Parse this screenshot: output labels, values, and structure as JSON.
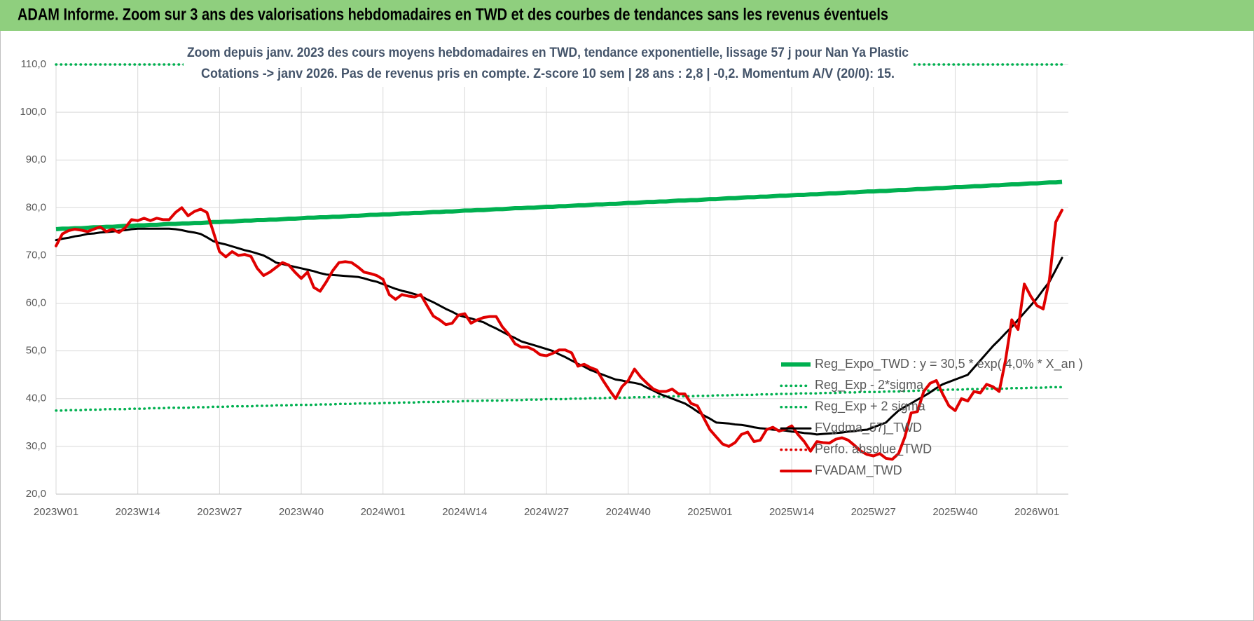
{
  "header": {
    "title": "ADAM Informe. Zoom sur 3 ans des valorisations hebdomadaires en TWD et des courbes de tendances sans les revenus éventuels"
  },
  "chart_data": {
    "type": "line",
    "title": "Zoom depuis janv. 2023 des cours moyens hebdomadaires en TWD, tendance exponentielle, lissage 57 j pour Nan Ya Plastic",
    "subtitle": "Cotations -> janv 2026. Pas de revenus pris en compte. Z-score 10 sem | 28 ans : 2,8 | -0,2. Momentum A/V (20/0): 15.",
    "categories": [
      "2023W01",
      null,
      null,
      null,
      null,
      null,
      null,
      null,
      null,
      null,
      null,
      null,
      null,
      "2023W14",
      null,
      null,
      null,
      null,
      null,
      null,
      null,
      null,
      null,
      null,
      null,
      null,
      "2023W27",
      null,
      null,
      null,
      null,
      null,
      null,
      null,
      null,
      null,
      null,
      null,
      null,
      "2023W40",
      null,
      null,
      null,
      null,
      null,
      null,
      null,
      null,
      null,
      null,
      null,
      null,
      "2024W01",
      null,
      null,
      null,
      null,
      null,
      null,
      null,
      null,
      null,
      null,
      null,
      null,
      "2024W14",
      null,
      null,
      null,
      null,
      null,
      null,
      null,
      null,
      null,
      null,
      null,
      null,
      "2024W27",
      null,
      null,
      null,
      null,
      null,
      null,
      null,
      null,
      null,
      null,
      null,
      null,
      "2024W40",
      null,
      null,
      null,
      null,
      null,
      null,
      null,
      null,
      null,
      null,
      null,
      null,
      "2025W01",
      null,
      null,
      null,
      null,
      null,
      null,
      null,
      null,
      null,
      null,
      null,
      null,
      "2025W14",
      null,
      null,
      null,
      null,
      null,
      null,
      null,
      null,
      null,
      null,
      null,
      null,
      "2025W27",
      null,
      null,
      null,
      null,
      null,
      null,
      null,
      null,
      null,
      null,
      null,
      null,
      "2025W40",
      null,
      null,
      null,
      null,
      null,
      null,
      null,
      null,
      null,
      null,
      null,
      null,
      "2026W01",
      null,
      null,
      null,
      null
    ],
    "ylim": [
      20,
      110
    ],
    "yticks": [
      {
        "value": 20,
        "label": "20,0"
      },
      {
        "value": 30,
        "label": "30,0"
      },
      {
        "value": 40,
        "label": "40,0"
      },
      {
        "value": 50,
        "label": "50,0"
      },
      {
        "value": 60,
        "label": "60,0"
      },
      {
        "value": 70,
        "label": "70,0"
      },
      {
        "value": 80,
        "label": "80,0"
      },
      {
        "value": 90,
        "label": "90,0"
      },
      {
        "value": 100,
        "label": "100,0"
      },
      {
        "value": 110,
        "label": "110,0"
      }
    ],
    "grid": true,
    "legend": "right",
    "series": [
      {
        "name": "Reg_Expo_TWD : y = 30,5 * exp( 4,0% * X_an )",
        "color": "#00b050",
        "style": "thick",
        "values": [
          75.5,
          75.6,
          75.6,
          75.7,
          75.7,
          75.8,
          75.9,
          75.9,
          76.0,
          76.0,
          76.1,
          76.2,
          76.2,
          76.3,
          76.3,
          76.4,
          76.4,
          76.5,
          76.6,
          76.6,
          76.7,
          76.7,
          76.8,
          76.8,
          76.9,
          77.0,
          77.0,
          77.1,
          77.1,
          77.2,
          77.3,
          77.3,
          77.4,
          77.4,
          77.5,
          77.5,
          77.6,
          77.7,
          77.7,
          77.8,
          77.9,
          77.9,
          78.0,
          78.0,
          78.1,
          78.1,
          78.2,
          78.3,
          78.3,
          78.4,
          78.5,
          78.5,
          78.6,
          78.6,
          78.7,
          78.8,
          78.8,
          78.9,
          78.9,
          79.0,
          79.1,
          79.1,
          79.2,
          79.2,
          79.3,
          79.4,
          79.4,
          79.5,
          79.5,
          79.6,
          79.7,
          79.7,
          79.8,
          79.9,
          79.9,
          80.0,
          80.0,
          80.1,
          80.2,
          80.2,
          80.3,
          80.3,
          80.4,
          80.5,
          80.5,
          80.6,
          80.7,
          80.7,
          80.8,
          80.8,
          80.9,
          81.0,
          81.0,
          81.1,
          81.2,
          81.2,
          81.3,
          81.3,
          81.4,
          81.5,
          81.5,
          81.6,
          81.6,
          81.7,
          81.8,
          81.8,
          81.9,
          82.0,
          82.0,
          82.1,
          82.2,
          82.2,
          82.3,
          82.3,
          82.4,
          82.5,
          82.5,
          82.6,
          82.7,
          82.7,
          82.8,
          82.8,
          82.9,
          83.0,
          83.0,
          83.1,
          83.2,
          83.2,
          83.3,
          83.4,
          83.4,
          83.5,
          83.5,
          83.6,
          83.7,
          83.7,
          83.8,
          83.9,
          83.9,
          84.0,
          84.1,
          84.1,
          84.2,
          84.3,
          84.3,
          84.4,
          84.5,
          84.5,
          84.6,
          84.7,
          84.7,
          84.8,
          84.9,
          84.9,
          85.0,
          85.1,
          85.1,
          85.2,
          85.3,
          85.3,
          85.4
        ]
      },
      {
        "name": "Reg_Exp - 2*sigma",
        "color": "#00b050",
        "style": "dotted",
        "values": [
          37.5,
          37.5,
          37.6,
          37.6,
          37.6,
          37.7,
          37.7,
          37.7,
          37.8,
          37.8,
          37.8,
          37.8,
          37.9,
          37.9,
          37.9,
          38.0,
          38.0,
          38.0,
          38.1,
          38.1,
          38.1,
          38.1,
          38.2,
          38.2,
          38.2,
          38.3,
          38.3,
          38.3,
          38.4,
          38.4,
          38.4,
          38.4,
          38.5,
          38.5,
          38.5,
          38.6,
          38.6,
          38.6,
          38.7,
          38.7,
          38.7,
          38.7,
          38.8,
          38.8,
          38.8,
          38.9,
          38.9,
          38.9,
          39.0,
          39.0,
          39.0,
          39.0,
          39.1,
          39.1,
          39.1,
          39.2,
          39.2,
          39.2,
          39.3,
          39.3,
          39.3,
          39.3,
          39.4,
          39.4,
          39.4,
          39.5,
          39.5,
          39.5,
          39.6,
          39.6,
          39.6,
          39.6,
          39.7,
          39.7,
          39.7,
          39.8,
          39.8,
          39.8,
          39.9,
          39.9,
          39.9,
          39.9,
          40.0,
          40.0,
          40.0,
          40.1,
          40.1,
          40.1,
          40.2,
          40.2,
          40.2,
          40.2,
          40.3,
          40.3,
          40.3,
          40.4,
          40.4,
          40.4,
          40.5,
          40.5,
          40.5,
          40.5,
          40.6,
          40.6,
          40.6,
          40.7,
          40.7,
          40.7,
          40.8,
          40.8,
          40.8,
          40.8,
          40.9,
          40.9,
          40.9,
          41.0,
          41.0,
          41.0,
          41.1,
          41.1,
          41.1,
          41.1,
          41.2,
          41.2,
          41.2,
          41.3,
          41.3,
          41.3,
          41.4,
          41.4,
          41.4,
          41.4,
          41.5,
          41.5,
          41.5,
          41.6,
          41.6,
          41.7,
          41.7,
          41.7,
          41.8,
          41.8,
          41.9,
          41.9,
          41.9,
          42.0,
          42.0,
          42.0,
          42.1,
          42.1,
          42.1,
          42.1,
          42.2,
          42.2,
          42.2,
          42.3,
          42.3,
          42.3,
          42.4,
          42.4,
          42.4
        ]
      },
      {
        "name": "Reg_Exp + 2 sigma",
        "color": "#00b050",
        "style": "dotted",
        "values": [
          110,
          110,
          110,
          110,
          110,
          110,
          110,
          110,
          110,
          110,
          110,
          110,
          110,
          110,
          110,
          110,
          110,
          110,
          110,
          110,
          110,
          110,
          110,
          110,
          110,
          110,
          110,
          110,
          110,
          110,
          110,
          110,
          110,
          110,
          110,
          110,
          110,
          110,
          110,
          110,
          110,
          110,
          110,
          110,
          110,
          110,
          110,
          110,
          110,
          110,
          110,
          110,
          110,
          110,
          110,
          110,
          110,
          110,
          110,
          110,
          110,
          110,
          110,
          110,
          110,
          110,
          110,
          110,
          110,
          110,
          110,
          110,
          110,
          110,
          110,
          110,
          110,
          110,
          110,
          110,
          110,
          110,
          110,
          110,
          110,
          110,
          110,
          110,
          110,
          110,
          110,
          110,
          110,
          110,
          110,
          110,
          110,
          110,
          110,
          110,
          110,
          110,
          110,
          110,
          110,
          110,
          110,
          110,
          110,
          110,
          110,
          110,
          110,
          110,
          110,
          110,
          110,
          110,
          110,
          110,
          110,
          110,
          110,
          110,
          110,
          110,
          110,
          110,
          110,
          110,
          110,
          110,
          110,
          110,
          110,
          110,
          110,
          110,
          110,
          110,
          110,
          110,
          110,
          110,
          110,
          110,
          110,
          110,
          110,
          110,
          110,
          110,
          110,
          110,
          110,
          110,
          110,
          110,
          110,
          110,
          110
        ]
      },
      {
        "name": "FVgdma_57j_TWD",
        "color": "#000000",
        "style": "solid",
        "values": [
          73.2,
          73.5,
          73.7,
          74.0,
          74.2,
          74.5,
          74.6,
          74.8,
          74.9,
          75.0,
          75.2,
          75.3,
          75.5,
          75.6,
          75.6,
          75.6,
          75.6,
          75.6,
          75.6,
          75.5,
          75.3,
          75.0,
          74.8,
          74.5,
          73.8,
          73.0,
          72.6,
          72.3,
          71.9,
          71.5,
          71.1,
          70.8,
          70.4,
          70.0,
          69.3,
          68.5,
          68.2,
          67.9,
          67.6,
          67.3,
          67.0,
          66.7,
          66.3,
          66.0,
          65.9,
          65.8,
          65.7,
          65.6,
          65.5,
          65.2,
          64.8,
          64.5,
          64.0,
          63.5,
          63.0,
          62.6,
          62.3,
          61.9,
          61.5,
          60.8,
          60.2,
          59.5,
          58.8,
          58.2,
          57.5,
          57.1,
          56.8,
          56.4,
          56.0,
          55.3,
          54.7,
          54.0,
          53.3,
          52.7,
          52.0,
          51.6,
          51.2,
          50.8,
          50.4,
          50.0,
          49.3,
          48.7,
          48.0,
          47.3,
          46.7,
          46.0,
          45.5,
          45.0,
          44.5,
          44.0,
          43.8,
          43.5,
          43.3,
          43.0,
          42.3,
          41.7,
          41.0,
          40.5,
          40.0,
          39.5,
          39.0,
          38.2,
          37.3,
          36.5,
          35.8,
          35.0,
          34.9,
          34.8,
          34.6,
          34.5,
          34.3,
          34.0,
          33.8,
          33.7,
          33.5,
          33.4,
          33.3,
          33.1,
          33.0,
          32.8,
          32.7,
          32.5,
          32.6,
          32.7,
          32.8,
          32.9,
          33.1,
          33.2,
          33.4,
          33.5,
          34.0,
          34.5,
          35.0,
          36.3,
          37.5,
          38.3,
          39.0,
          39.8,
          40.5,
          41.3,
          42.2,
          43.0,
          43.5,
          44.0,
          44.5,
          45.0,
          46.5,
          48.0,
          49.5,
          51.0,
          52.3,
          53.7,
          55.0,
          56.5,
          58.0,
          59.5,
          61.0,
          62.8,
          64.5,
          67.0,
          69.5
        ]
      },
      {
        "name": "Perfo. absolue_TWD",
        "color": "#e00000",
        "style": "dotted"
      },
      {
        "name": "FVADAM_TWD",
        "color": "#e00000",
        "style": "red",
        "values": [
          72,
          74.5,
          75.2,
          75.5,
          75.3,
          75,
          75.5,
          76,
          75,
          75.5,
          74.8,
          75.8,
          77.5,
          77.3,
          77.8,
          77.3,
          77.8,
          77.5,
          77.5,
          79,
          80,
          78.3,
          79.2,
          79.7,
          79,
          75,
          70.8,
          69.7,
          70.8,
          70,
          70.2,
          69.8,
          67.3,
          65.8,
          66.5,
          67.5,
          68.5,
          68,
          66.5,
          65.2,
          66.5,
          63.3,
          62.5,
          64.5,
          66.8,
          68.5,
          68.7,
          68.5,
          67.6,
          66.5,
          66.2,
          65.8,
          65,
          61.8,
          60.8,
          61.8,
          61.5,
          61.3,
          61.8,
          59.5,
          57.3,
          56.5,
          55.5,
          55.8,
          57.5,
          57.8,
          55.8,
          56.5,
          57,
          57.2,
          57.2,
          55,
          53.5,
          51.5,
          50.8,
          50.8,
          50.2,
          49.2,
          49,
          49.5,
          50.2,
          50.2,
          49.6,
          46.8,
          47.2,
          46.5,
          46,
          43.8,
          41.8,
          40,
          42.5,
          43.8,
          46.2,
          44.5,
          43.2,
          42,
          41.5,
          41.5,
          42,
          41,
          41,
          39,
          38.5,
          36,
          33.5,
          32,
          30.5,
          30,
          30.8,
          32.5,
          33,
          31,
          31.3,
          33.5,
          34,
          33.2,
          33.6,
          34.3,
          32.5,
          31,
          29,
          31,
          30.8,
          30.7,
          31.5,
          31.8,
          31.3,
          30.2,
          29,
          28.3,
          28,
          28.5,
          27.5,
          27.3,
          28.5,
          32,
          37,
          37.3,
          41.5,
          43.2,
          43.8,
          41,
          38.5,
          37.5,
          40,
          39.5,
          41.5,
          41.2,
          43,
          42.5,
          41.5,
          48,
          56.5,
          54.5,
          64,
          61.5,
          59.5,
          58.8,
          65,
          77,
          79.5
        ]
      }
    ]
  }
}
